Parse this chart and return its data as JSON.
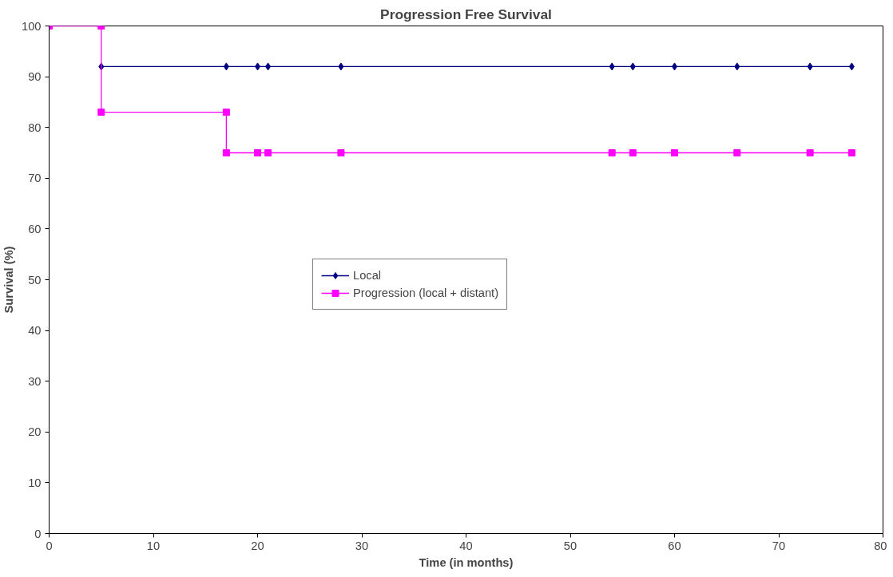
{
  "chart_data": {
    "type": "line",
    "title": "Progression Free Survival",
    "xlabel": "Time (in months)",
    "ylabel": "Survival (%)",
    "xlim": [
      0,
      80
    ],
    "xticks": [
      0,
      10,
      20,
      30,
      40,
      50,
      60,
      70,
      80
    ],
    "ylim": [
      0,
      100
    ],
    "yticks": [
      0,
      10,
      20,
      30,
      40,
      50,
      60,
      70,
      80,
      90,
      100
    ],
    "grid": false,
    "legend": "center",
    "line_style": "solid",
    "series": [
      {
        "name": "Local",
        "color": "#000080",
        "marker": "diamond",
        "x": [
          5,
          17,
          20,
          21,
          28,
          54,
          56,
          60,
          66,
          73,
          77
        ],
        "values": [
          92,
          92,
          92,
          92,
          92,
          92,
          92,
          92,
          92,
          92,
          92
        ]
      },
      {
        "name": "Progression (local + distant)",
        "color": "#ff00ff",
        "marker": "square",
        "x": [
          0,
          5,
          5,
          17,
          17,
          20,
          21,
          28,
          54,
          56,
          60,
          66,
          73,
          77
        ],
        "values": [
          100,
          100,
          83,
          83,
          75,
          75,
          75,
          75,
          75,
          75,
          75,
          75,
          75,
          75
        ]
      }
    ]
  }
}
